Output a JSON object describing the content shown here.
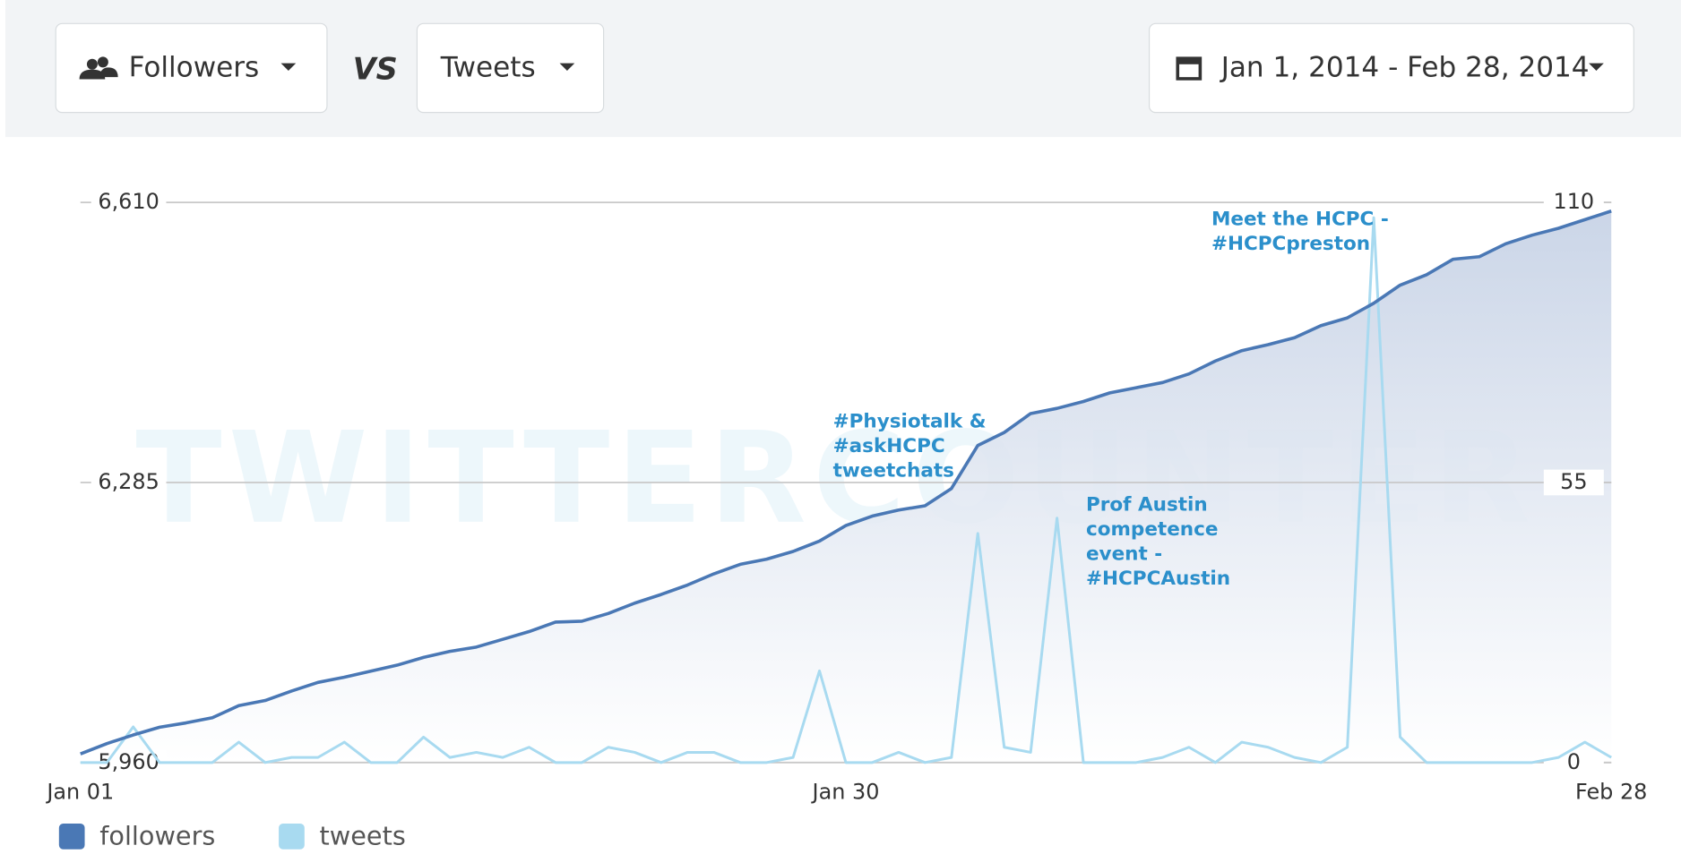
{
  "header": {
    "metric_a": "Followers",
    "versus": "VS",
    "metric_b": "Tweets",
    "date_range": "Jan 1, 2014 - Feb 28, 2014"
  },
  "chart_data": {
    "type": "line",
    "watermark": "TWITTERCOUNTER",
    "categories": [
      "Jan 01",
      null,
      null,
      null,
      null,
      null,
      null,
      null,
      null,
      null,
      null,
      null,
      null,
      null,
      null,
      null,
      null,
      null,
      null,
      null,
      null,
      null,
      null,
      null,
      null,
      null,
      null,
      null,
      null,
      "Jan 30",
      null,
      null,
      null,
      null,
      null,
      null,
      null,
      null,
      null,
      null,
      null,
      null,
      null,
      null,
      null,
      null,
      null,
      null,
      null,
      null,
      null,
      null,
      null,
      null,
      null,
      null,
      null,
      null,
      "Feb 28"
    ],
    "series": [
      {
        "name": "followers",
        "color": "#4a78b5",
        "area": true,
        "values": [
          5970,
          5982,
          5992,
          6001,
          6006,
          6012,
          6026,
          6032,
          6043,
          6053,
          6059,
          6066,
          6073,
          6082,
          6089,
          6094,
          6103,
          6112,
          6123,
          6124,
          6133,
          6145,
          6155,
          6166,
          6179,
          6190,
          6196,
          6205,
          6217,
          6235,
          6246,
          6253,
          6258,
          6278,
          6328,
          6343,
          6365,
          6371,
          6379,
          6389,
          6395,
          6401,
          6411,
          6426,
          6438,
          6445,
          6453,
          6467,
          6476,
          6493,
          6514,
          6526,
          6544,
          6547,
          6562,
          6572,
          6580,
          6590,
          6600
        ]
      },
      {
        "name": "tweets",
        "color": "#a8daf0",
        "axis": "y2",
        "values": [
          0,
          0,
          7,
          0,
          0,
          0,
          4,
          0,
          1,
          1,
          4,
          0,
          0,
          5,
          1,
          2,
          1,
          3,
          0,
          0,
          3,
          2,
          0,
          2,
          2,
          0,
          0,
          1,
          18,
          0,
          0,
          2,
          0,
          1,
          45,
          3,
          2,
          48,
          0,
          0,
          0,
          1,
          3,
          0,
          4,
          3,
          1,
          0,
          3,
          107,
          5,
          0,
          0,
          0,
          0,
          0,
          1,
          4,
          1
        ]
      }
    ],
    "ylim": [
      5960,
      6610
    ],
    "yticks": [
      {
        "value": 5960,
        "label": "5,960"
      },
      {
        "value": 6285,
        "label": "6,285"
      },
      {
        "value": 6610,
        "label": "6,610"
      }
    ],
    "y2lim": [
      0,
      110
    ],
    "y2ticks": [
      0,
      55,
      110
    ],
    "grid": true,
    "legend": "bottom-left",
    "annotations": [
      {
        "lines": [
          "#Physiotalk &",
          "#askHCPC",
          "tweetchats"
        ]
      },
      {
        "lines": [
          "Prof Austin",
          "competence",
          "event -",
          "#HCPCAustin"
        ]
      },
      {
        "lines": [
          "Meet the HCPC -",
          "#HCPCpreston"
        ]
      }
    ]
  }
}
